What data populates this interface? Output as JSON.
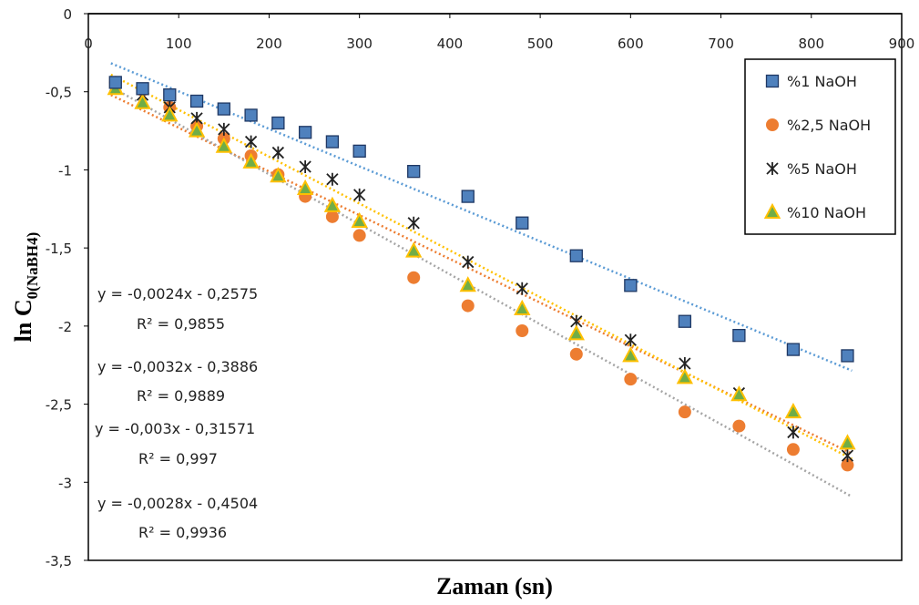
{
  "chart_data": {
    "type": "scatter",
    "xlabel": "Zaman (sn)",
    "ylabel_main": "ln C",
    "ylabel_sub": "0(NaBH4)",
    "xlim": [
      0,
      900
    ],
    "ylim": [
      -3.5,
      0
    ],
    "x_ticks": [
      0,
      100,
      200,
      300,
      400,
      500,
      600,
      700,
      800,
      900
    ],
    "y_ticks": [
      0,
      -0.5,
      -1,
      -1.5,
      -2,
      -2.5,
      -3,
      -3.5
    ],
    "y_tick_labels": [
      "0",
      "-0,5",
      "-1",
      "-1,5",
      "-2",
      "-2,5",
      "-3",
      "-3,5"
    ],
    "x_axis_position": "top",
    "grid": false,
    "legend_position": "top-right",
    "series": [
      {
        "name": "%1   NaOH",
        "marker": "square",
        "color": "#4F81BD",
        "trend_color": "#5B9BD5",
        "x": [
          30,
          60,
          90,
          120,
          150,
          180,
          210,
          240,
          270,
          300,
          360,
          420,
          480,
          540,
          600,
          660,
          720,
          780,
          840
        ],
        "y": [
          -0.44,
          -0.48,
          -0.52,
          -0.56,
          -0.61,
          -0.65,
          -0.7,
          -0.76,
          -0.82,
          -0.88,
          -1.01,
          -1.17,
          -1.34,
          -1.55,
          -1.74,
          -1.97,
          -2.06,
          -2.15,
          -2.19
        ],
        "trend": {
          "slope": -0.0024,
          "intercept": -0.2575
        }
      },
      {
        "name": "%2,5 NaOH",
        "marker": "circle",
        "color": "#ED7D31",
        "trend_color": "#ED7D31",
        "x": [
          30,
          60,
          90,
          120,
          150,
          180,
          210,
          240,
          270,
          300,
          360,
          420,
          480,
          540,
          600,
          660,
          720,
          780,
          840
        ],
        "y": [
          -0.44,
          -0.49,
          -0.6,
          -0.72,
          -0.8,
          -0.91,
          -1.03,
          -1.17,
          -1.3,
          -1.42,
          -1.69,
          -1.87,
          -2.03,
          -2.18,
          -2.34,
          -2.55,
          -2.64,
          -2.79,
          -2.89
        ],
        "trend": {
          "slope": -0.0028,
          "intercept": -0.4504
        }
      },
      {
        "name": "%5   NaOH",
        "marker": "asterisk",
        "color": "#222222",
        "trend_color": "#A5A5A5",
        "x": [
          30,
          60,
          90,
          120,
          150,
          180,
          210,
          240,
          270,
          300,
          360,
          420,
          480,
          540,
          600,
          660,
          720,
          780,
          840
        ],
        "y": [
          -0.46,
          -0.52,
          -0.6,
          -0.67,
          -0.74,
          -0.82,
          -0.89,
          -0.98,
          -1.06,
          -1.16,
          -1.34,
          -1.59,
          -1.76,
          -1.97,
          -2.09,
          -2.24,
          -2.43,
          -2.68,
          -2.83
        ],
        "trend": {
          "slope": -0.0032,
          "intercept": -0.3886
        }
      },
      {
        "name": "%10 NaOH",
        "marker": "triangle",
        "color": "#70AD47",
        "edge_color": "#FFC000",
        "trend_color": "#FFC000",
        "x": [
          30,
          60,
          90,
          120,
          150,
          180,
          210,
          240,
          270,
          300,
          360,
          420,
          480,
          540,
          600,
          660,
          720,
          780,
          840
        ],
        "y": [
          -0.48,
          -0.57,
          -0.65,
          -0.75,
          -0.85,
          -0.95,
          -1.04,
          -1.12,
          -1.23,
          -1.33,
          -1.52,
          -1.74,
          -1.89,
          -2.05,
          -2.19,
          -2.33,
          -2.44,
          -2.55,
          -2.75
        ],
        "trend": {
          "slope": -0.003,
          "intercept": -0.31571
        }
      }
    ],
    "equations": [
      {
        "eq": "y = -0,0024x - 0,2575",
        "r2": "R² = 0,9855"
      },
      {
        "eq": "y = -0,0032x - 0,3886",
        "r2": "R² = 0,9889"
      },
      {
        "eq": "y = -0,003x - 0,31571",
        "r2": "R² = 0,997"
      },
      {
        "eq": "y = -0,0028x - 0,4504",
        "r2": "R² = 0,9936"
      }
    ]
  }
}
